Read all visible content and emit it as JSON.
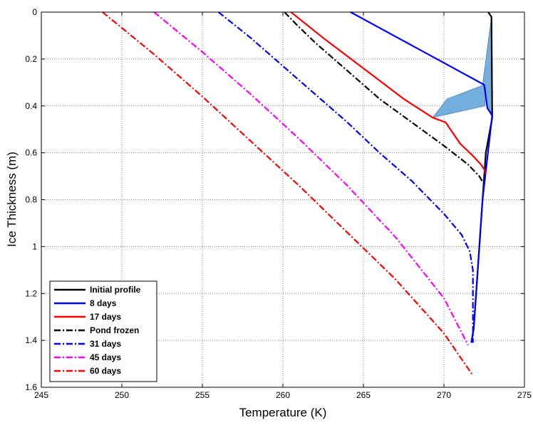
{
  "chart_data": {
    "type": "line",
    "title": "",
    "xlabel": "Temperature (K)",
    "ylabel": "Ice Thickness (m)",
    "xlim": [
      245,
      275
    ],
    "ylim": [
      0,
      1.6
    ],
    "y_inverted": true,
    "x_ticks": [
      245,
      250,
      255,
      260,
      265,
      270,
      275
    ],
    "x_tick_labels": [
      "245",
      "250",
      "255",
      "260",
      "265",
      "270",
      "275"
    ],
    "y_ticks": [
      0,
      0.2,
      0.4,
      0.6,
      0.8,
      1,
      1.2,
      1.4,
      1.6
    ],
    "y_tick_labels": [
      "0",
      "0.2",
      "0.4",
      "0.6",
      "0.8",
      "1",
      "1.2",
      "1.4",
      "1.6"
    ],
    "grid": "dotted",
    "legend_position": "bottom-left",
    "pond_fill_color": "#74AEDC",
    "series": [
      {
        "name": "Initial profile",
        "color": "#000000",
        "dash": "solid",
        "x": [
          272.75,
          272.95,
          273.0,
          272.6,
          272.4,
          272.2,
          272.0,
          271.85,
          271.7
        ],
        "y": [
          0.0,
          0.02,
          0.45,
          0.6,
          0.8,
          1.0,
          1.2,
          1.35,
          1.41
        ]
      },
      {
        "name": "8 days",
        "color": "#0000FF",
        "dash": "solid",
        "x": [
          264.2,
          272.5,
          272.7,
          273.0,
          272.4,
          272.2,
          272.0,
          271.85,
          271.7
        ],
        "y": [
          0.0,
          0.31,
          0.41,
          0.44,
          0.8,
          1.0,
          1.2,
          1.35,
          1.41
        ]
      },
      {
        "name": "17 days",
        "color": "#FF0000",
        "dash": "solid",
        "x": [
          260.5,
          262.5,
          265.0,
          267.5,
          269.3,
          270.1,
          271.0,
          271.9,
          272.3,
          272.5,
          272.6
        ],
        "y": [
          0.0,
          0.11,
          0.24,
          0.37,
          0.45,
          0.47,
          0.56,
          0.62,
          0.65,
          0.67,
          0.69
        ]
      },
      {
        "name": "Pond frozen",
        "color": "#000000",
        "dash": "dashdot",
        "x": [
          260.1,
          260.8,
          262.0,
          264.0,
          266.0,
          268.0,
          270.0,
          271.5,
          272.2,
          272.45
        ],
        "y": [
          0.0,
          0.05,
          0.13,
          0.25,
          0.37,
          0.47,
          0.57,
          0.65,
          0.7,
          0.73
        ]
      },
      {
        "name": "31 days",
        "color": "#0000FF",
        "dash": "dashdot",
        "x": [
          256.0,
          258.0,
          260.0,
          262.0,
          264.0,
          266.0,
          268.0,
          270.0,
          271.1,
          271.6,
          271.8,
          271.8
        ],
        "y": [
          0.0,
          0.11,
          0.23,
          0.35,
          0.47,
          0.6,
          0.72,
          0.86,
          0.95,
          1.02,
          1.1,
          1.41
        ]
      },
      {
        "name": "45 days",
        "color": "#FF00FF",
        "dash": "dashdot",
        "x": [
          252.0,
          255.0,
          258.0,
          261.0,
          264.0,
          267.0,
          270.0,
          271.5
        ],
        "y": [
          0.0,
          0.17,
          0.35,
          0.54,
          0.74,
          0.96,
          1.22,
          1.42
        ]
      },
      {
        "name": "60 days",
        "color": "#FF0000",
        "dash": "dashdot",
        "x": [
          248.8,
          252.0,
          255.0,
          258.0,
          261.0,
          264.0,
          267.0,
          270.0,
          271.8
        ],
        "y": [
          0.0,
          0.18,
          0.36,
          0.55,
          0.74,
          0.94,
          1.14,
          1.37,
          1.55
        ]
      }
    ],
    "shaded_region": {
      "x": [
        272.4,
        272.95,
        273.0,
        272.7,
        272.5,
        270.2,
        269.3,
        272.55,
        272.6
      ],
      "y": [
        0.31,
        0.02,
        0.45,
        0.41,
        0.31,
        0.37,
        0.45,
        0.4,
        0.31
      ]
    }
  }
}
